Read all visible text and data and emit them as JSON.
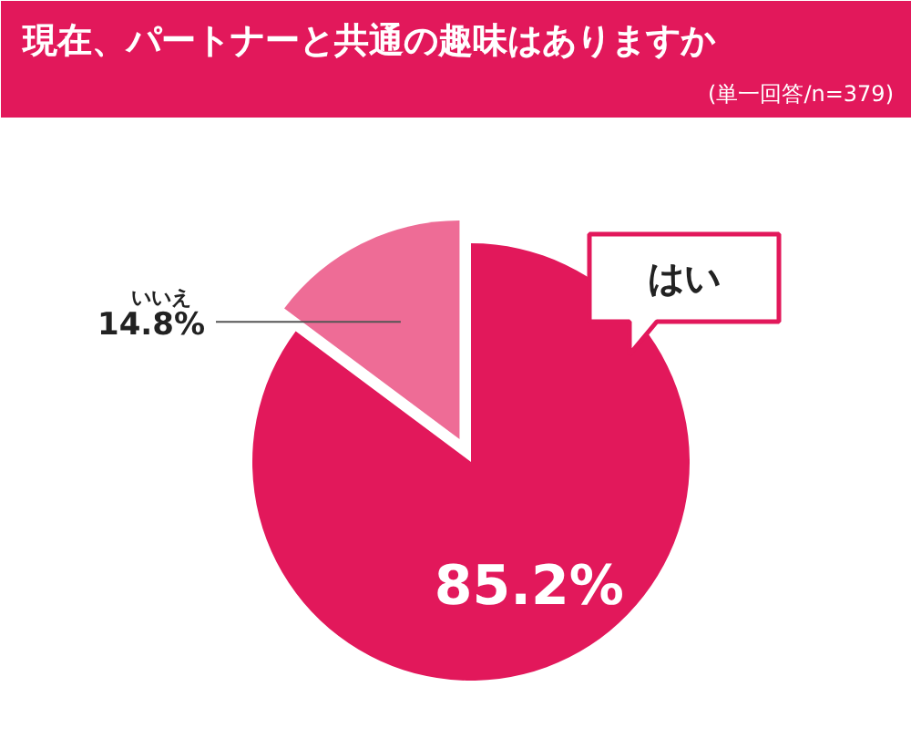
{
  "chart_data": {
    "type": "pie",
    "title": "現在、パートナーと共通の趣味はありますか",
    "subtitle": "(単一回答/n=379)",
    "categories": [
      "はい",
      "いいえ"
    ],
    "values": [
      85.2,
      14.8
    ],
    "colors": [
      "#e2185b",
      "#ee6c96"
    ],
    "value_labels": [
      "85.2%",
      "14.8%"
    ]
  }
}
